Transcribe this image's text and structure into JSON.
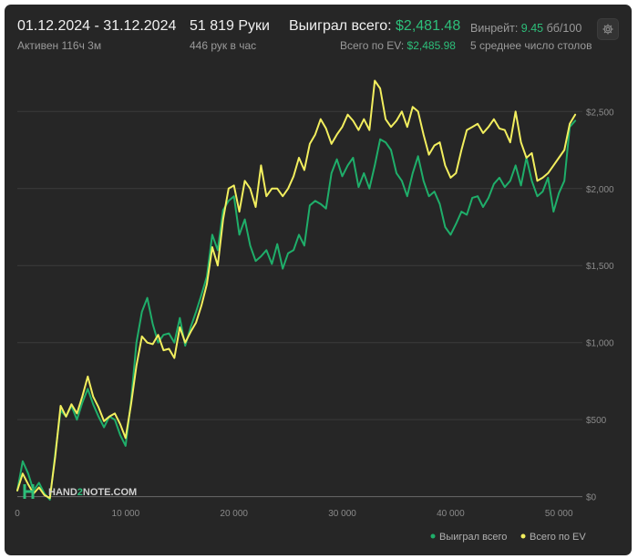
{
  "header": {
    "date_range": "01.12.2024 - 31.12.2024",
    "active_time": "Активен 116ч 3м",
    "hands": "51 819 Руки",
    "hands_per_hour": "446 рук в час",
    "won_total_label": "Выиграл всего:",
    "won_total_value": "$2,481.48",
    "ev_total_label": "Всего по EV:",
    "ev_total_value": "$2,485.98",
    "winrate_label": "Винрейт:",
    "winrate_value": "9.45",
    "winrate_unit": "бб/100",
    "avg_tables": "5 среднее число столов"
  },
  "watermark": {
    "text_a": "HAND",
    "text_b": "2",
    "text_c": "NOTE.COM"
  },
  "colors": {
    "won": "#1fae6a",
    "ev": "#f2ee5e",
    "accent": "#2dbf7a"
  },
  "chart_data": {
    "type": "line",
    "title": "",
    "xlabel": "",
    "ylabel": "",
    "xlim": [
      0,
      52000
    ],
    "ylim": [
      -20,
      2780
    ],
    "x_ticks": [
      {
        "value": 0,
        "label": "0"
      },
      {
        "value": 10000,
        "label": "10 000"
      },
      {
        "value": 20000,
        "label": "20 000"
      },
      {
        "value": 30000,
        "label": "30 000"
      },
      {
        "value": 40000,
        "label": "40 000"
      },
      {
        "value": 50000,
        "label": "50 000"
      }
    ],
    "y_ticks": [
      {
        "value": 0,
        "label": "$0"
      },
      {
        "value": 500,
        "label": "$500"
      },
      {
        "value": 1000,
        "label": "$1,000"
      },
      {
        "value": 1500,
        "label": "$1,500"
      },
      {
        "value": 2000,
        "label": "$2,000"
      },
      {
        "value": 2500,
        "label": "$2,500"
      }
    ],
    "grid": true,
    "legend_position": "bottom-right",
    "series": [
      {
        "name": "Выиграл всего",
        "color": "#1fae6a",
        "x": [
          0,
          500,
          1000,
          1500,
          2000,
          2500,
          3000,
          3500,
          4000,
          4500,
          5000,
          5500,
          6000,
          6500,
          7000,
          7500,
          8000,
          8500,
          9000,
          9500,
          10000,
          10500,
          11000,
          11500,
          12000,
          12500,
          13000,
          13500,
          14000,
          14500,
          15000,
          15500,
          16000,
          16500,
          17000,
          17500,
          18000,
          18500,
          19000,
          19500,
          20000,
          20500,
          21000,
          21500,
          22000,
          22500,
          23000,
          23500,
          24000,
          24500,
          25000,
          25500,
          26000,
          26500,
          27000,
          27500,
          28000,
          28500,
          29000,
          29500,
          30000,
          30500,
          31000,
          31500,
          32000,
          32500,
          33000,
          33500,
          34000,
          34500,
          35000,
          35500,
          36000,
          36500,
          37000,
          37500,
          38000,
          38500,
          39000,
          39500,
          40000,
          40500,
          41000,
          41500,
          42000,
          42500,
          43000,
          43500,
          44000,
          44500,
          45000,
          45500,
          46000,
          46500,
          47000,
          47500,
          48000,
          48500,
          49000,
          49500,
          50000,
          50500,
          51000,
          51500
        ],
        "y": [
          40,
          230,
          150,
          40,
          90,
          20,
          -20,
          280,
          560,
          520,
          590,
          500,
          610,
          700,
          600,
          520,
          450,
          520,
          500,
          400,
          330,
          620,
          1000,
          1200,
          1290,
          1120,
          1000,
          1050,
          1060,
          1000,
          1160,
          980,
          1100,
          1200,
          1310,
          1430,
          1700,
          1600,
          1860,
          1920,
          1950,
          1700,
          1800,
          1630,
          1530,
          1560,
          1600,
          1510,
          1640,
          1480,
          1580,
          1600,
          1700,
          1630,
          1890,
          1920,
          1900,
          1870,
          2100,
          2190,
          2080,
          2150,
          2200,
          2010,
          2100,
          2000,
          2150,
          2320,
          2300,
          2250,
          2100,
          2050,
          1950,
          2100,
          2210,
          2050,
          1950,
          1980,
          1900,
          1750,
          1700,
          1770,
          1850,
          1830,
          1940,
          1950,
          1880,
          1940,
          2030,
          2070,
          2010,
          2050,
          2150,
          2020,
          2200,
          2050,
          1950,
          1980,
          2070,
          1850,
          1970,
          2050,
          2400,
          2440
        ]
      },
      {
        "name": "Всего по EV",
        "color": "#f2ee5e",
        "x": [
          0,
          500,
          1000,
          1500,
          2000,
          2500,
          3000,
          3500,
          4000,
          4500,
          5000,
          5500,
          6000,
          6500,
          7000,
          7500,
          8000,
          8500,
          9000,
          9500,
          10000,
          10500,
          11000,
          11500,
          12000,
          12500,
          13000,
          13500,
          14000,
          14500,
          15000,
          15500,
          16000,
          16500,
          17000,
          17500,
          18000,
          18500,
          19000,
          19500,
          20000,
          20500,
          21000,
          21500,
          22000,
          22500,
          23000,
          23500,
          24000,
          24500,
          25000,
          25500,
          26000,
          26500,
          27000,
          27500,
          28000,
          28500,
          29000,
          29500,
          30000,
          30500,
          31000,
          31500,
          32000,
          32500,
          33000,
          33500,
          34000,
          34500,
          35000,
          35500,
          36000,
          36500,
          37000,
          37500,
          38000,
          38500,
          39000,
          39500,
          40000,
          40500,
          41000,
          41500,
          42000,
          42500,
          43000,
          43500,
          44000,
          44500,
          45000,
          45500,
          46000,
          46500,
          47000,
          47500,
          48000,
          48500,
          49000,
          49500,
          50000,
          50500,
          51000,
          51500
        ],
        "y": [
          40,
          150,
          80,
          20,
          60,
          10,
          -10,
          260,
          590,
          520,
          600,
          540,
          650,
          780,
          650,
          580,
          490,
          520,
          540,
          470,
          380,
          600,
          850,
          1040,
          1000,
          990,
          1050,
          950,
          960,
          900,
          1100,
          1000,
          1070,
          1130,
          1240,
          1380,
          1620,
          1500,
          1800,
          2000,
          2020,
          1850,
          2050,
          2000,
          1880,
          2150,
          1950,
          2000,
          2000,
          1950,
          2000,
          2080,
          2200,
          2120,
          2290,
          2350,
          2450,
          2390,
          2290,
          2350,
          2400,
          2480,
          2440,
          2380,
          2450,
          2380,
          2700,
          2650,
          2450,
          2400,
          2440,
          2500,
          2400,
          2530,
          2500,
          2350,
          2220,
          2280,
          2300,
          2150,
          2070,
          2100,
          2250,
          2380,
          2400,
          2420,
          2360,
          2400,
          2450,
          2390,
          2380,
          2300,
          2500,
          2300,
          2200,
          2230,
          2050,
          2070,
          2100,
          2150,
          2200,
          2250,
          2420,
          2480
        ]
      }
    ]
  }
}
